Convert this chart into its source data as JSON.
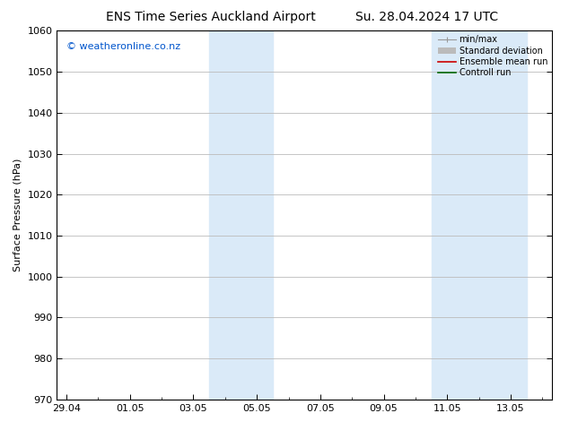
{
  "title_left": "ENS Time Series Auckland Airport",
  "title_right": "Su. 28.04.2024 17 UTC",
  "ylabel": "Surface Pressure (hPa)",
  "ylim": [
    970,
    1060
  ],
  "yticks": [
    970,
    980,
    990,
    1000,
    1010,
    1020,
    1030,
    1040,
    1050,
    1060
  ],
  "x_tick_labels": [
    "29.04",
    "01.05",
    "03.05",
    "05.05",
    "07.05",
    "09.05",
    "11.05",
    "13.05"
  ],
  "x_tick_positions": [
    0,
    2,
    4,
    6,
    8,
    10,
    12,
    14
  ],
  "xlim": [
    -0.3,
    15.3
  ],
  "shaded_bands": [
    {
      "x_start": 4.5,
      "x_end": 6.5
    },
    {
      "x_start": 11.5,
      "x_end": 14.5
    }
  ],
  "shade_color": "#daeaf8",
  "shade_alpha": 1.0,
  "watermark_text": "© weatheronline.co.nz",
  "watermark_color": "#0055cc",
  "watermark_fontsize": 8,
  "legend_items": [
    {
      "label": "min/max",
      "color": "#999999",
      "lw": 1,
      "type": "minmax"
    },
    {
      "label": "Standard deviation",
      "color": "#bbbbbb",
      "lw": 5,
      "type": "thick"
    },
    {
      "label": "Ensemble mean run",
      "color": "#cc0000",
      "lw": 1,
      "type": "line"
    },
    {
      "label": "Controll run",
      "color": "#006600",
      "lw": 1,
      "type": "line"
    }
  ],
  "bg_color": "#ffffff",
  "plot_bg_color": "#ffffff",
  "grid_color": "#bbbbbb",
  "title_fontsize": 10,
  "axis_label_fontsize": 8,
  "tick_fontsize": 8,
  "legend_fontsize": 7
}
